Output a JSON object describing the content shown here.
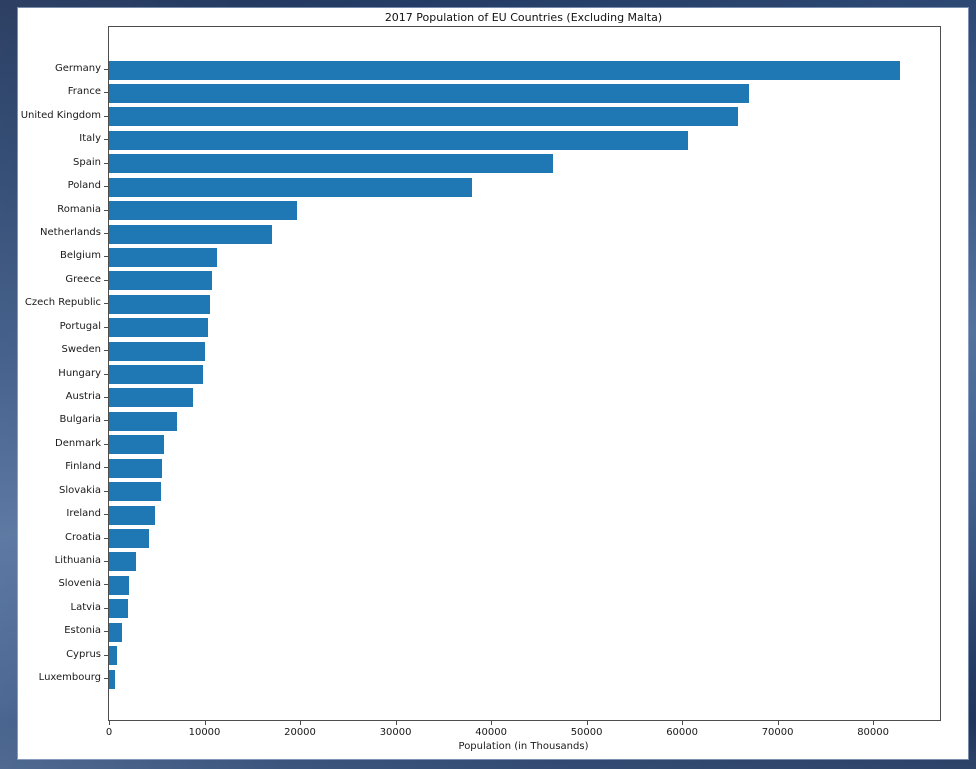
{
  "figure": {
    "title": "2017 Population of EU Countries (Excluding Malta)",
    "frame_color": "#3d5a87",
    "panel_color": "#ffffff"
  },
  "chart_data": {
    "type": "bar",
    "orientation": "horizontal",
    "title": "2017 Population of EU Countries (Excluding Malta)",
    "xlabel": "Population (in Thousands)",
    "ylabel": "",
    "categories": [
      "Germany",
      "France",
      "United Kingdom",
      "Italy",
      "Spain",
      "Poland",
      "Romania",
      "Netherlands",
      "Belgium",
      "Greece",
      "Czech Republic",
      "Portugal",
      "Sweden",
      "Hungary",
      "Austria",
      "Bulgaria",
      "Denmark",
      "Finland",
      "Slovakia",
      "Ireland",
      "Croatia",
      "Lithuania",
      "Slovenia",
      "Latvia",
      "Estonia",
      "Cyprus",
      "Luxembourg"
    ],
    "values": [
      82800,
      66990,
      65810,
      60590,
      46530,
      37970,
      19640,
      17080,
      11350,
      10770,
      10580,
      10310,
      10000,
      9800,
      8770,
      7100,
      5750,
      5500,
      5440,
      4780,
      4150,
      2850,
      2070,
      1950,
      1320,
      860,
      590
    ],
    "xlim": [
      0,
      87000
    ],
    "xticks": [
      0,
      10000,
      20000,
      30000,
      40000,
      50000,
      60000,
      70000,
      80000
    ],
    "bar_color": "#1f77b4",
    "grid": false,
    "legend": null
  }
}
